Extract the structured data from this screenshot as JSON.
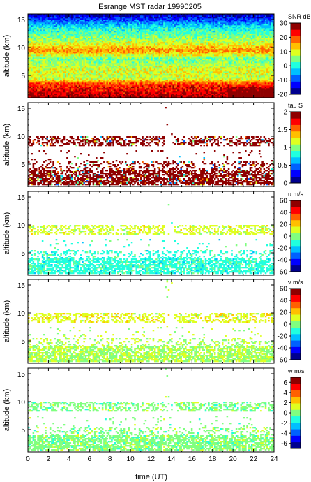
{
  "title": "Esrange MST radar 19990205",
  "xlabel": "time (UT)",
  "x_ticks": [
    "0",
    "2",
    "4",
    "6",
    "8",
    "10",
    "12",
    "14",
    "16",
    "18",
    "20",
    "22",
    "24"
  ],
  "colormap": [
    "#00008f",
    "#0000ff",
    "#0060ff",
    "#00bfff",
    "#20ffdf",
    "#80ff80",
    "#dfff20",
    "#ffbf00",
    "#ff6000",
    "#ff0000",
    "#8f0000"
  ],
  "chart_data": [
    {
      "type": "heatmap",
      "title": "Esrange MST radar 19990205",
      "xlabel": "",
      "ylabel": "altitude (km)",
      "xlim": [
        0,
        24
      ],
      "ylim": [
        1,
        16
      ],
      "y_ticks": [
        "5",
        "10",
        "15"
      ],
      "colorbar": {
        "label": "SNR dB",
        "range": [
          -20,
          30
        ],
        "ticks": [
          "30",
          "20",
          "10",
          "0",
          "-10",
          "-20"
        ]
      },
      "pattern": "full",
      "profile": [
        [
          1.0,
          27
        ],
        [
          2.0,
          25
        ],
        [
          3.5,
          21
        ],
        [
          4.5,
          8
        ],
        [
          6.0,
          10
        ],
        [
          8.0,
          4
        ],
        [
          9.5,
          17
        ],
        [
          11.0,
          8
        ],
        [
          13.5,
          0
        ],
        [
          16.0,
          -17
        ]
      ]
    },
    {
      "type": "heatmap",
      "xlabel": "",
      "ylabel": "altitude (km)",
      "xlim": [
        0,
        24
      ],
      "ylim": [
        1,
        16
      ],
      "y_ticks": [
        "5",
        "10",
        "15"
      ],
      "colorbar": {
        "label": "tau S",
        "range": [
          0,
          2
        ],
        "ticks": [
          "2",
          "1.5",
          "1",
          "0.5",
          "0"
        ]
      },
      "pattern": "sparse",
      "typical_value": 1.9
    },
    {
      "type": "heatmap",
      "xlabel": "",
      "ylabel": "altitude (km)",
      "xlim": [
        0,
        24
      ],
      "ylim": [
        1,
        16
      ],
      "y_ticks": [
        "5",
        "10",
        "15"
      ],
      "colorbar": {
        "label": "u m/s",
        "range": [
          -60,
          60
        ],
        "ticks": [
          "60",
          "40",
          "20",
          "0",
          "-20",
          "-40",
          "-60"
        ]
      },
      "pattern": "sparse",
      "layers": [
        {
          "alt": [
            8.3,
            10.0
          ],
          "value": 10
        },
        {
          "alt": [
            1.2,
            5.5
          ],
          "value": -10
        }
      ]
    },
    {
      "type": "heatmap",
      "xlabel": "",
      "ylabel": "altitude (km)",
      "xlim": [
        0,
        24
      ],
      "ylim": [
        1,
        16
      ],
      "y_ticks": [
        "5",
        "10",
        "15"
      ],
      "colorbar": {
        "label": "v m/s",
        "range": [
          -60,
          60
        ],
        "ticks": [
          "60",
          "40",
          "20",
          "0",
          "-20",
          "-40",
          "-60"
        ]
      },
      "pattern": "sparse",
      "layers": [
        {
          "alt": [
            8.3,
            10.0
          ],
          "value": 12
        },
        {
          "alt": [
            1.2,
            5.5
          ],
          "value": 5
        }
      ]
    },
    {
      "type": "heatmap",
      "xlabel": "time (UT)",
      "ylabel": "altitude (km)",
      "xlim": [
        0,
        24
      ],
      "ylim": [
        1,
        16
      ],
      "y_ticks": [
        "5",
        "10",
        "15"
      ],
      "colorbar": {
        "label": "w m/s",
        "range": [
          -7,
          7
        ],
        "ticks": [
          "6",
          "4",
          "2",
          "0",
          "-2",
          "-4",
          "-6"
        ]
      },
      "pattern": "sparse",
      "layers": [
        {
          "alt": [
            8.3,
            10.0
          ],
          "value": 0
        },
        {
          "alt": [
            1.2,
            5.5
          ],
          "value": 0
        }
      ]
    }
  ]
}
